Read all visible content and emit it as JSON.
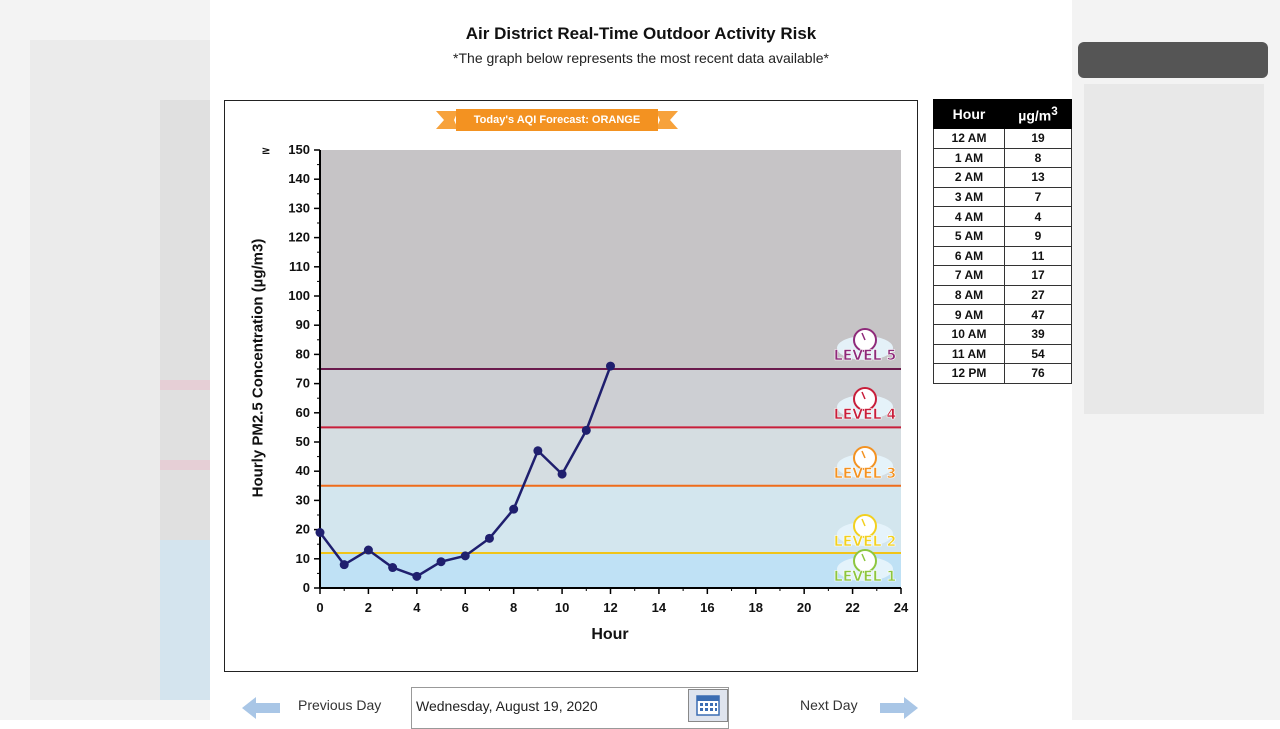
{
  "page": {
    "title": "Air District Real-Time Outdoor Activity Risk",
    "subtitle": "*The graph below represents the most recent data available*"
  },
  "forecast": {
    "text": "Today's AQI Forecast: ORANGE",
    "color": "#f39221"
  },
  "nav": {
    "prev_label": "Previous Day",
    "next_label": "Next Day",
    "date_value": "Wednesday, August 19, 2020"
  },
  "table": {
    "headers": [
      "Hour",
      "µg/m",
      "3"
    ],
    "rows": [
      [
        "12 AM",
        "19"
      ],
      [
        "1 AM",
        "8"
      ],
      [
        "2 AM",
        "13"
      ],
      [
        "3 AM",
        "7"
      ],
      [
        "4 AM",
        "4"
      ],
      [
        "5 AM",
        "9"
      ],
      [
        "6 AM",
        "11"
      ],
      [
        "7 AM",
        "17"
      ],
      [
        "8 AM",
        "27"
      ],
      [
        "9 AM",
        "47"
      ],
      [
        "10 AM",
        "39"
      ],
      [
        "11 AM",
        "54"
      ],
      [
        "12 PM",
        "76"
      ]
    ]
  },
  "chart_data": {
    "type": "line",
    "xlabel": "Hour",
    "ylabel": "Hourly PM2.5 Concentration (µg/m3)",
    "xlim": [
      0,
      24
    ],
    "ylim": [
      0,
      150
    ],
    "x_ticks": [
      0,
      2,
      4,
      6,
      8,
      10,
      12,
      14,
      16,
      18,
      20,
      22,
      24
    ],
    "y_ticks": [
      0,
      10,
      20,
      30,
      40,
      50,
      60,
      70,
      80,
      90,
      100,
      110,
      120,
      130,
      140,
      150
    ],
    "y_top_marker": "≥",
    "grid": false,
    "series": [
      {
        "x": [
          0,
          1,
          2,
          3,
          4,
          5,
          6,
          7,
          8,
          9,
          10,
          11,
          12
        ],
        "values": [
          19,
          8,
          13,
          7,
          4,
          9,
          11,
          17,
          27,
          47,
          39,
          54,
          76
        ],
        "color": "#1f1f6e"
      }
    ],
    "bands": [
      {
        "from": 0,
        "to": 12,
        "color": "#bfe1f5"
      },
      {
        "from": 12,
        "to": 35,
        "color": "#d3e6ee"
      },
      {
        "from": 35,
        "to": 55,
        "color": "#d5dde1"
      },
      {
        "from": 55,
        "to": 75,
        "color": "#cdcfd3"
      },
      {
        "from": 75,
        "to": 150,
        "color": "#c6c4c6"
      }
    ],
    "thresholds": [
      {
        "y": 12,
        "label": "LEVEL 1",
        "line_color": "#f0c419",
        "label_color": "#8dc63f",
        "show_line": true
      },
      {
        "y": 12,
        "label": "LEVEL 2",
        "line_color": "#f0c419",
        "label_color": "#f2d01f",
        "show_line": true
      },
      {
        "y": 35,
        "label": "LEVEL 3",
        "line_color": "#ef6c1a",
        "label_color": "#f39221",
        "show_line": true
      },
      {
        "y": 55,
        "label": "LEVEL 4",
        "line_color": "#c81e3a",
        "label_color": "#c81e3a",
        "show_line": true
      },
      {
        "y": 75,
        "label": "LEVEL 5",
        "line_color": "#6a1a4c",
        "label_color": "#8e2a7a",
        "show_line": true
      }
    ]
  }
}
